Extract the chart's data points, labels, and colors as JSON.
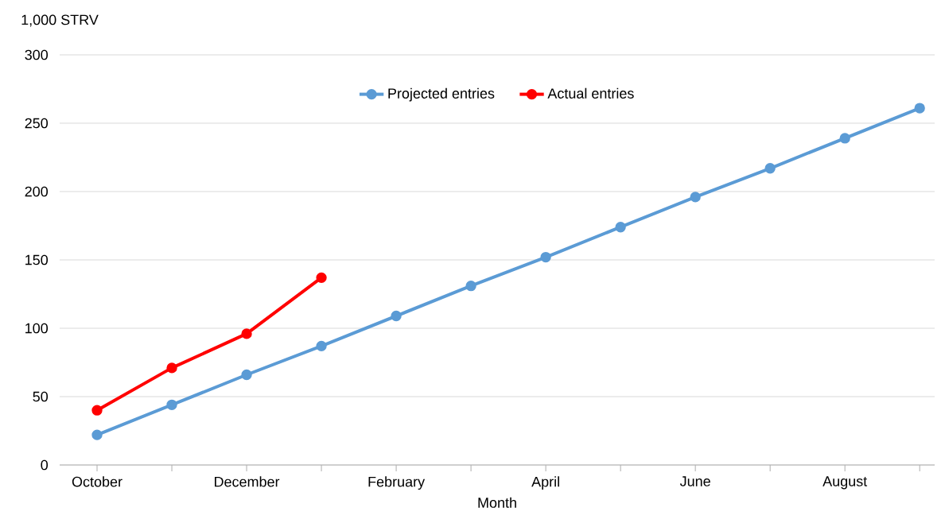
{
  "chart_data": {
    "type": "line",
    "xlabel": "Month",
    "ylabel": "1,000 STRV",
    "categories": [
      "October",
      null,
      "December",
      null,
      "February",
      null,
      "April",
      null,
      "June",
      null,
      "August",
      null
    ],
    "series": [
      {
        "name": "Projected entries",
        "color": "#5b9bd5",
        "values": [
          22,
          44,
          66,
          87,
          109,
          131,
          152,
          174,
          196,
          217,
          239,
          261
        ]
      },
      {
        "name": "Actual entries",
        "color": "#ff0000",
        "values": [
          40,
          71,
          96,
          137,
          null,
          null,
          null,
          null,
          null,
          null,
          null,
          null
        ]
      }
    ],
    "ylim": [
      0,
      300
    ],
    "yticks": [
      0,
      50,
      100,
      150,
      200,
      250,
      300
    ],
    "grid": "y",
    "legend": "top",
    "marker": "circle",
    "line_style": "solid"
  }
}
